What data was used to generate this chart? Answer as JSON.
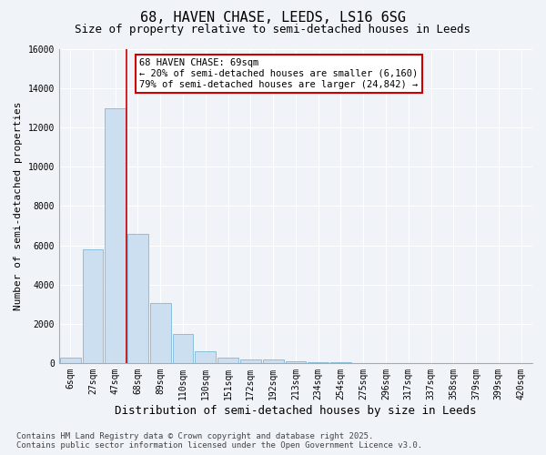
{
  "title": "68, HAVEN CHASE, LEEDS, LS16 6SG",
  "subtitle": "Size of property relative to semi-detached houses in Leeds",
  "xlabel": "Distribution of semi-detached houses by size in Leeds",
  "ylabel": "Number of semi-detached properties",
  "categories": [
    "6sqm",
    "27sqm",
    "47sqm",
    "68sqm",
    "89sqm",
    "110sqm",
    "130sqm",
    "151sqm",
    "172sqm",
    "192sqm",
    "213sqm",
    "234sqm",
    "254sqm",
    "275sqm",
    "296sqm",
    "317sqm",
    "337sqm",
    "358sqm",
    "379sqm",
    "399sqm",
    "420sqm"
  ],
  "values": [
    280,
    5800,
    13000,
    6600,
    3050,
    1480,
    600,
    290,
    200,
    155,
    90,
    45,
    20,
    10,
    4,
    2,
    1,
    0,
    0,
    0,
    0
  ],
  "bar_color": "#ccdff0",
  "bar_edge_color": "#7fb8d8",
  "vline_color": "#cc0000",
  "vline_x_index": 2.5,
  "annotation_title": "68 HAVEN CHASE: 69sqm",
  "annotation_line1": "← 20% of semi-detached houses are smaller (6,160)",
  "annotation_line2": "79% of semi-detached houses are larger (24,842) →",
  "annotation_box_facecolor": "#ffffff",
  "annotation_box_edgecolor": "#cc0000",
  "ylim": [
    0,
    16000
  ],
  "yticks": [
    0,
    2000,
    4000,
    6000,
    8000,
    10000,
    12000,
    14000,
    16000
  ],
  "bg_color": "#f0f4f8",
  "plot_bg_color": "#f0f4f8",
  "grid_color": "#ffffff",
  "footer_line1": "Contains HM Land Registry data © Crown copyright and database right 2025.",
  "footer_line2": "Contains public sector information licensed under the Open Government Licence v3.0.",
  "title_fontsize": 11,
  "subtitle_fontsize": 9,
  "xlabel_fontsize": 9,
  "ylabel_fontsize": 8,
  "tick_fontsize": 7,
  "annotation_fontsize": 7.5,
  "footer_fontsize": 6.5
}
